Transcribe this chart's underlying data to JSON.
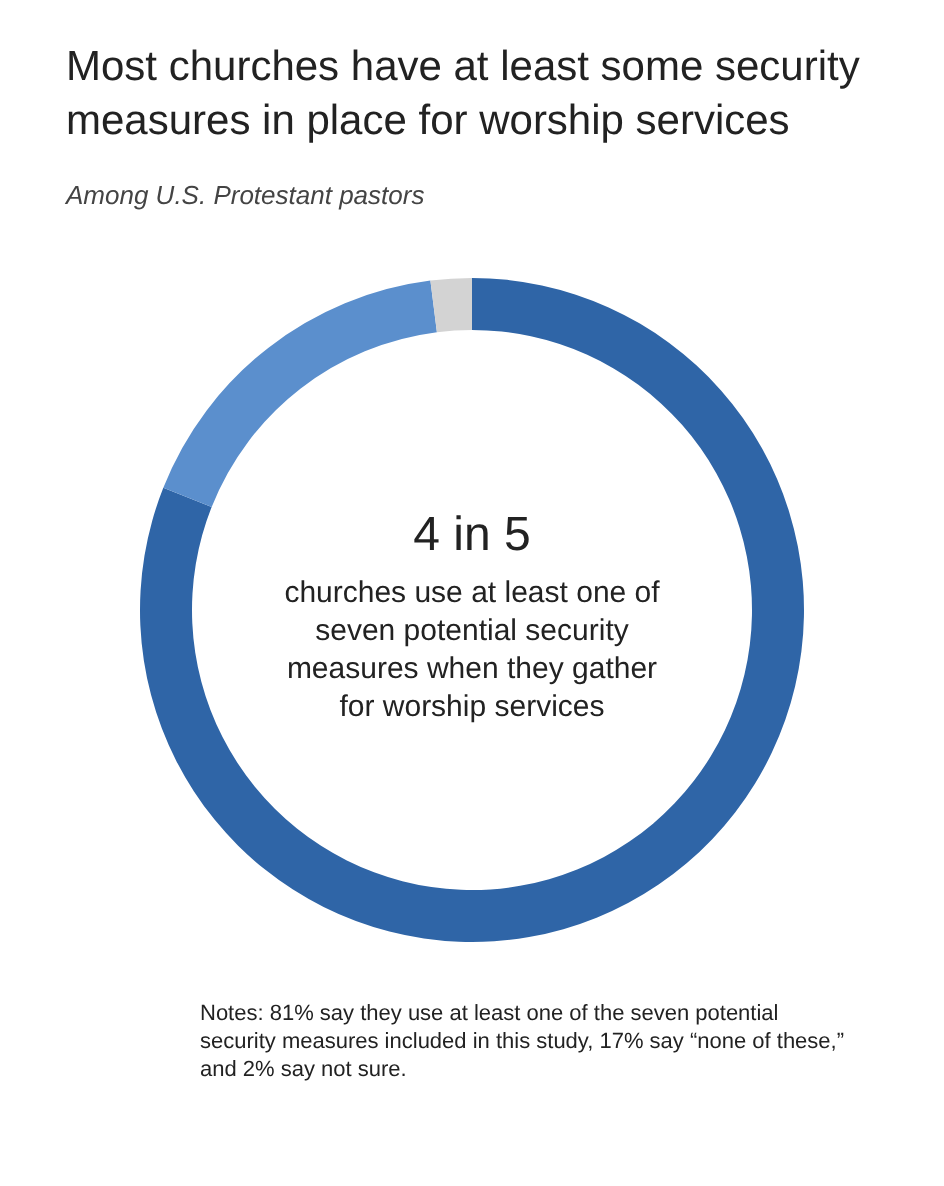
{
  "chart_data": {
    "type": "donut",
    "title": "Most churches have at least some security measures in place for worship services",
    "subtitle": "Among U.S. Protestant pastors",
    "categories": [
      null,
      null,
      null
    ],
    "values": [
      81,
      17,
      2
    ],
    "colors": [
      "#2f65a7",
      "#5b8fcd",
      "#d3d3d3"
    ],
    "annotations": [
      "4 in 5",
      "churches use at least one of seven potential security measures when they gather for worship services",
      "Notes: 81% say they use at least one of the seven potential security measures included in this study, 17% say “none of these,” and 2% say not sure."
    ]
  }
}
